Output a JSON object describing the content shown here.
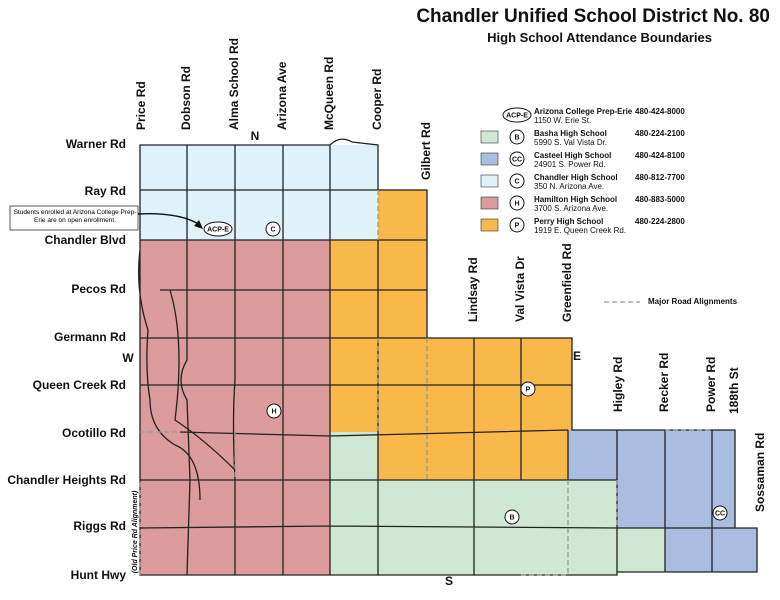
{
  "title": "Chandler Unified School District No. 80",
  "subtitle": "High School Attendance Boundaries",
  "roads": {
    "north_south": [
      "Price Rd",
      "Dobson Rd",
      "Alma School Rd",
      "Arizona Ave",
      "McQueen Rd",
      "Cooper Rd",
      "Gilbert Rd",
      "Lindsay Rd",
      "Val Vista Dr",
      "Greenfield Rd",
      "Higley Rd",
      "Recker Rd",
      "Power Rd",
      "188th St",
      "Sossaman Rd"
    ],
    "east_west": [
      "Warner Rd",
      "Ray Rd",
      "Chandler Blvd",
      "Pecos Rd",
      "Germann Rd",
      "Queen Creek Rd",
      "Ocotillo Rd",
      "Chandler Heights Rd",
      "Riggs Rd",
      "Hunt Hwy"
    ]
  },
  "compass": {
    "north": "N",
    "west": "W",
    "east": "E",
    "south": "S"
  },
  "note": "Students enrolled at Arizona College Prep-Erie are on open enrollment.",
  "old_alignment_label": "(Old Price Rd Alignment)",
  "legend": {
    "items": [
      {
        "symbol": "ACP-E",
        "name": "Arizona College Prep-Erie",
        "address": "1150 W. Erie St.",
        "phone": "480-424-8000"
      },
      {
        "symbol": "B",
        "name": "Basha High School",
        "address": "5990 S. Val Vista Dr.",
        "phone": "480-224-2100"
      },
      {
        "symbol": "CC",
        "name": "Casteel High School",
        "address": "24901 S. Power Rd.",
        "phone": "480-424-8100"
      },
      {
        "symbol": "C",
        "name": "Chandler High School",
        "address": "350 N. Arizona Ave.",
        "phone": "480-812-7700"
      },
      {
        "symbol": "H",
        "name": "Hamilton High School",
        "address": "3700 S. Arizona Ave.",
        "phone": "480-883-5000"
      },
      {
        "symbol": "P",
        "name": "Perry High School",
        "address": "1919 E. Queen Creek Rd.",
        "phone": "480-224-2800"
      }
    ],
    "major_road_label": "Major Road Alignments"
  },
  "markers": [
    "ACP-E",
    "C",
    "H",
    "P",
    "B",
    "CC"
  ]
}
